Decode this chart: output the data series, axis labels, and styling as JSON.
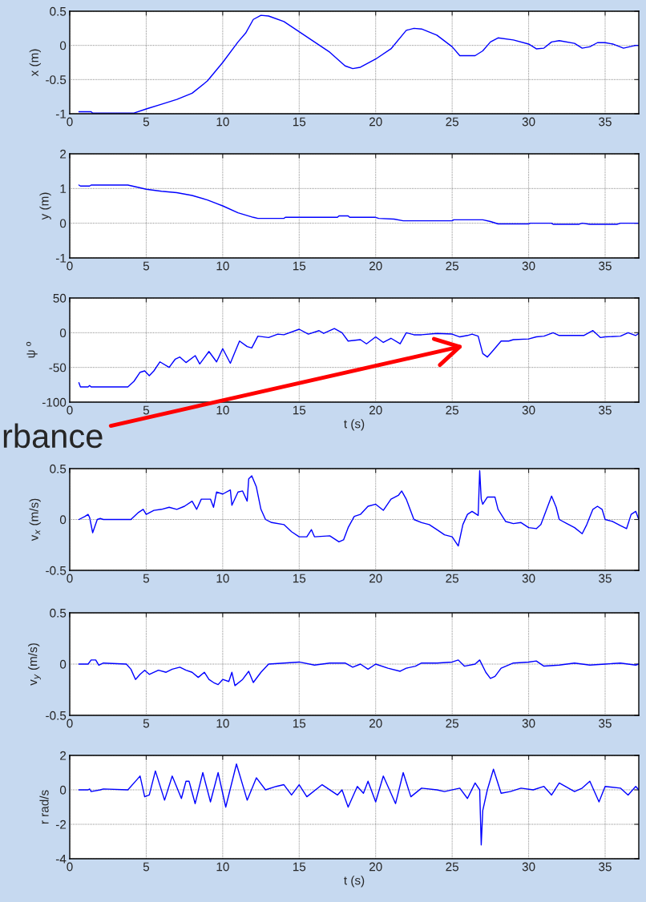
{
  "chart_data": [
    {
      "type": "line",
      "ylabel": "x (m)",
      "xlim": [
        0,
        37.2
      ],
      "ylim": [
        -1,
        0.5
      ],
      "xticks": [
        0,
        5,
        10,
        15,
        20,
        25,
        30,
        35
      ],
      "yticks": [
        -1,
        -0.5,
        0,
        0.5
      ],
      "grid": true,
      "x": [
        0.6,
        1.4,
        1.5,
        4.2,
        5,
        6,
        7,
        8,
        9,
        10,
        11,
        11.5,
        12,
        12.5,
        13,
        14,
        15,
        16,
        17,
        18,
        18.5,
        19,
        20,
        21,
        22,
        22.5,
        23,
        24,
        25,
        25.5,
        26.5,
        27,
        27.5,
        28,
        29,
        30,
        30.5,
        31,
        31.5,
        32,
        33,
        33.5,
        34,
        34.5,
        35,
        35.5,
        36.2,
        37,
        37.2
      ],
      "series": [
        {
          "color": "#0000ff",
          "values": [
            -0.97,
            -0.97,
            -0.99,
            -0.99,
            -0.93,
            -0.86,
            -0.79,
            -0.7,
            -0.52,
            -0.25,
            0.05,
            0.18,
            0.38,
            0.44,
            0.43,
            0.35,
            0.2,
            0.05,
            -0.1,
            -0.3,
            -0.34,
            -0.32,
            -0.2,
            -0.05,
            0.22,
            0.25,
            0.24,
            0.15,
            -0.02,
            -0.15,
            -0.15,
            -0.08,
            0.05,
            0.11,
            0.08,
            0.02,
            -0.05,
            -0.04,
            0.05,
            0.07,
            0.03,
            -0.04,
            -0.02,
            0.04,
            0.04,
            0.02,
            -0.04,
            0,
            0
          ]
        }
      ]
    },
    {
      "type": "line",
      "ylabel": "y (m)",
      "xlim": [
        0,
        37.2
      ],
      "ylim": [
        -1,
        2
      ],
      "xticks": [
        0,
        5,
        10,
        15,
        20,
        25,
        30,
        35
      ],
      "yticks": [
        -1,
        0,
        1,
        2
      ],
      "grid": true,
      "x": [
        0.6,
        0.7,
        1.3,
        1.4,
        3.8,
        4.5,
        5,
        6,
        7,
        8,
        9,
        10,
        11,
        12,
        12.3,
        14,
        14.1,
        17.5,
        17.6,
        18.2,
        18.3,
        20,
        20.2,
        21.2,
        21.8,
        25,
        25.1,
        27,
        27.5,
        28,
        30,
        30.1,
        31.5,
        31.6,
        33.3,
        33.5,
        34,
        35.8,
        36,
        37.2
      ],
      "series": [
        {
          "color": "#0000ff",
          "values": [
            1.1,
            1.07,
            1.07,
            1.1,
            1.1,
            1.03,
            0.98,
            0.92,
            0.88,
            0.8,
            0.67,
            0.5,
            0.3,
            0.17,
            0.14,
            0.14,
            0.17,
            0.17,
            0.21,
            0.21,
            0.17,
            0.17,
            0.14,
            0.12,
            0.07,
            0.07,
            0.1,
            0.1,
            0.05,
            -0.02,
            -0.02,
            0,
            0,
            -0.03,
            -0.03,
            0,
            -0.03,
            -0.03,
            0,
            0
          ]
        }
      ]
    },
    {
      "type": "line",
      "ylabel": "ψ º",
      "xlabel": "t (s)",
      "xlim": [
        0,
        37.2
      ],
      "ylim": [
        -100,
        50
      ],
      "xticks": [
        0,
        5,
        10,
        15,
        20,
        25,
        30,
        35
      ],
      "yticks": [
        -100,
        -50,
        0,
        50
      ],
      "grid": true,
      "annotations": [
        "rbance"
      ],
      "x": [
        0.6,
        0.7,
        1.2,
        1.3,
        1.4,
        3.8,
        4.2,
        4.6,
        4.9,
        5.2,
        5.5,
        5.9,
        6.5,
        6.9,
        7.2,
        7.6,
        8.2,
        8.5,
        9.1,
        9.6,
        10,
        10.5,
        10.8,
        11.1,
        11.6,
        11.9,
        12.3,
        13,
        13.6,
        14,
        15,
        15.6,
        16.3,
        16.6,
        17.3,
        17.8,
        18.2,
        19,
        19.4,
        20,
        20.5,
        21,
        21.6,
        22,
        22.5,
        23,
        24,
        25,
        25.5,
        26,
        26.3,
        26.7,
        27,
        27.3,
        27.7,
        28.2,
        28.7,
        29,
        30,
        30.5,
        31,
        31.6,
        32,
        33,
        33.6,
        34.2,
        34.7,
        35,
        36,
        36.5,
        37,
        37.2
      ],
      "series": [
        {
          "color": "#0000ff",
          "values": [
            -72,
            -78,
            -78,
            -76,
            -78,
            -78,
            -70,
            -57,
            -55,
            -62,
            -55,
            -42,
            -50,
            -38,
            -35,
            -43,
            -33,
            -45,
            -27,
            -42,
            -23,
            -44,
            -28,
            -12,
            -20,
            -22,
            -5,
            -7,
            -2,
            -3,
            5,
            -2,
            3,
            -1,
            6,
            0,
            -12,
            -10,
            -16,
            -6,
            -14,
            -8,
            -16,
            0,
            -3,
            -3,
            -1,
            -2,
            -6,
            -4,
            -2,
            -5,
            -30,
            -35,
            -25,
            -12,
            -12,
            -10,
            -9,
            -6,
            -5,
            0,
            -4,
            -4,
            -4,
            3,
            -7,
            -6,
            -5,
            0,
            -4,
            -1
          ]
        }
      ]
    },
    {
      "type": "line",
      "ylabel": "v$_{x}$ (m/s)",
      "xlim": [
        0,
        37.2
      ],
      "ylim": [
        -0.5,
        0.5
      ],
      "xticks": [
        0,
        5,
        10,
        15,
        20,
        25,
        30,
        35
      ],
      "yticks": [
        -0.5,
        0,
        0.5
      ],
      "grid": true,
      "x": [
        0.6,
        1,
        1.2,
        1.3,
        1.5,
        1.8,
        2,
        2.2,
        4,
        4.5,
        4.8,
        5,
        5.5,
        6,
        6.5,
        7,
        7.5,
        8,
        8.3,
        8.6,
        9.2,
        9.4,
        9.6,
        10,
        10.5,
        10.6,
        11,
        11.3,
        11.6,
        11.7,
        11.9,
        12.2,
        12.5,
        12.8,
        13.2,
        14,
        14.5,
        15,
        15.5,
        15.8,
        16,
        17,
        17.6,
        17.9,
        18.2,
        18.6,
        19,
        19.5,
        20,
        20.5,
        21,
        21.5,
        21.7,
        22,
        22.5,
        23,
        23.5,
        24,
        24.5,
        25,
        25.4,
        25.7,
        26,
        26.3,
        26.7,
        26.8,
        26.9,
        27,
        27.3,
        27.8,
        28,
        28.5,
        29,
        29.5,
        30,
        30.5,
        30.8,
        31.5,
        31.8,
        32,
        32.5,
        33,
        33.5,
        33.8,
        34.2,
        34.5,
        34.8,
        35,
        35.5,
        36,
        36.4,
        36.7,
        37,
        37.2
      ],
      "series": [
        {
          "color": "#0000ff",
          "values": [
            0,
            0.03,
            0.05,
            0.02,
            -0.13,
            0,
            0.01,
            0,
            0,
            0.07,
            0.1,
            0.05,
            0.09,
            0.1,
            0.12,
            0.1,
            0.13,
            0.18,
            0.1,
            0.2,
            0.2,
            0.12,
            0.27,
            0.25,
            0.29,
            0.14,
            0.27,
            0.28,
            0.18,
            0.4,
            0.43,
            0.32,
            0.1,
            0,
            -0.03,
            -0.05,
            -0.12,
            -0.17,
            -0.17,
            -0.1,
            -0.17,
            -0.16,
            -0.22,
            -0.2,
            -0.08,
            0.03,
            0.05,
            0.13,
            0.15,
            0.09,
            0.2,
            0.24,
            0.28,
            0.2,
            0,
            -0.03,
            -0.05,
            -0.1,
            -0.15,
            -0.17,
            -0.26,
            -0.05,
            0.05,
            0.08,
            0.04,
            0.48,
            0.2,
            0.15,
            0.22,
            0.22,
            0.1,
            -0.02,
            -0.04,
            -0.03,
            -0.08,
            -0.09,
            -0.05,
            0.23,
            0.12,
            0,
            -0.04,
            -0.08,
            -0.14,
            -0.05,
            0.1,
            0.13,
            0.1,
            0,
            -0.02,
            -0.06,
            -0.09,
            0.05,
            0.08,
            0
          ]
        }
      ]
    },
    {
      "type": "line",
      "ylabel": "v$_{y}$ (m/s)",
      "xlim": [
        0,
        37.2
      ],
      "ylim": [
        -0.5,
        0.5
      ],
      "xticks": [
        0,
        5,
        10,
        15,
        20,
        25,
        30,
        35
      ],
      "yticks": [
        -0.5,
        0,
        0.5
      ],
      "grid": true,
      "x": [
        0.6,
        1.2,
        1.4,
        1.7,
        1.9,
        2.2,
        3.7,
        4,
        4.3,
        4.6,
        4.9,
        5.2,
        5.8,
        6.3,
        6.7,
        7.2,
        7.6,
        8,
        8.4,
        8.8,
        9.1,
        9.4,
        9.7,
        10,
        10.4,
        10.6,
        10.8,
        11.3,
        11.7,
        12,
        12.5,
        13,
        14,
        15,
        16,
        17,
        18,
        18.5,
        19,
        19.5,
        20,
        20.8,
        21.6,
        22,
        22.6,
        23,
        24,
        25,
        25.4,
        25.8,
        26.5,
        26.8,
        27.2,
        27.5,
        27.8,
        28.2,
        29,
        30,
        30.5,
        31,
        32,
        33,
        34,
        35,
        36,
        37,
        37.2
      ],
      "series": [
        {
          "color": "#0000ff",
          "values": [
            0,
            0,
            0.04,
            0.04,
            -0.01,
            0.01,
            0,
            -0.05,
            -0.15,
            -0.1,
            -0.06,
            -0.1,
            -0.06,
            -0.08,
            -0.05,
            -0.03,
            -0.06,
            -0.08,
            -0.13,
            -0.08,
            -0.15,
            -0.18,
            -0.2,
            -0.15,
            -0.17,
            -0.08,
            -0.21,
            -0.15,
            -0.07,
            -0.18,
            -0.08,
            0,
            0.01,
            0.02,
            -0.01,
            0.01,
            0.01,
            -0.03,
            0,
            -0.05,
            0,
            -0.04,
            -0.07,
            -0.04,
            -0.02,
            0.01,
            0.01,
            0.02,
            0.04,
            -0.02,
            0,
            0.04,
            -0.08,
            -0.14,
            -0.12,
            -0.04,
            0.01,
            0.02,
            0.03,
            -0.02,
            -0.01,
            0.01,
            -0.01,
            0,
            0.01,
            -0.01,
            0
          ]
        }
      ]
    },
    {
      "type": "line",
      "ylabel": "r rad/s",
      "xlabel": "t (s)",
      "xlim": [
        0,
        37.2
      ],
      "ylim": [
        -4,
        2
      ],
      "xticks": [
        0,
        5,
        10,
        15,
        20,
        25,
        30,
        35
      ],
      "yticks": [
        -4,
        -2,
        0,
        2
      ],
      "grid": true,
      "x": [
        0.6,
        1.2,
        1.3,
        1.4,
        2,
        2.2,
        3.8,
        4.4,
        4.6,
        4.9,
        5.2,
        5.6,
        6.2,
        6.7,
        7.3,
        7.6,
        7.8,
        8.2,
        8.7,
        9.2,
        9.7,
        10.2,
        10.9,
        11.6,
        12.2,
        12.8,
        13.5,
        14,
        14.5,
        15,
        15.5,
        16.5,
        17.5,
        17.8,
        18.2,
        18.8,
        19.2,
        19.5,
        20,
        20.5,
        21,
        21.3,
        21.8,
        22.3,
        23,
        24,
        24.5,
        25.5,
        26,
        26.5,
        26.8,
        26.9,
        27,
        27.3,
        27.7,
        28.2,
        28.8,
        29.5,
        30.3,
        31,
        31.5,
        32,
        33,
        33.5,
        34,
        34.6,
        35,
        36,
        36.5,
        37,
        37.2
      ],
      "series": [
        {
          "color": "#0000ff",
          "values": [
            0,
            0,
            0.05,
            -0.1,
            0,
            0.05,
            0,
            0.6,
            0.8,
            -0.4,
            -0.3,
            1.1,
            -0.6,
            0.8,
            -0.5,
            0.5,
            0.5,
            -0.8,
            1.0,
            -0.7,
            1.0,
            -1.0,
            1.5,
            -0.6,
            0.7,
            0,
            0.2,
            0.3,
            -0.3,
            0.3,
            -0.4,
            0.3,
            -0.3,
            0,
            -1.0,
            0.2,
            -0.2,
            0.5,
            -0.7,
            0.8,
            -0.2,
            -0.8,
            1.0,
            -0.4,
            0.1,
            0,
            -0.1,
            0.1,
            -0.5,
            0.4,
            0,
            -3.2,
            -1.2,
            0,
            1.2,
            -0.2,
            -0.1,
            0.1,
            0,
            0.2,
            -0.3,
            0.4,
            -0.1,
            0.1,
            0.5,
            -0.7,
            0.2,
            0.1,
            -0.3,
            0.2,
            0
          ]
        }
      ]
    }
  ]
}
